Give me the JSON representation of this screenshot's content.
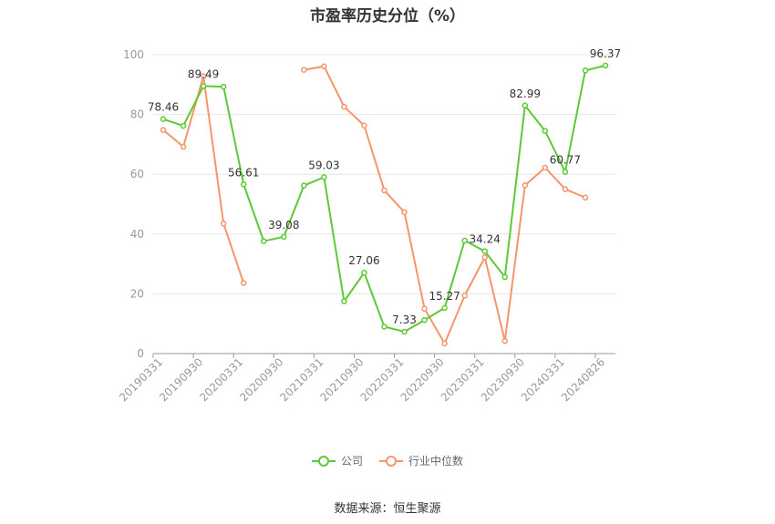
{
  "chart_data": {
    "type": "line",
    "title": "市盈率历史分位（%）",
    "xlabel": "",
    "ylabel": "",
    "ylim": [
      0,
      100
    ],
    "yticks": [
      0,
      20,
      40,
      60,
      80,
      100
    ],
    "grid": true,
    "legend_position": "bottom",
    "x_tick_labels": [
      "20190331",
      "20190930",
      "20200331",
      "20200930",
      "20210331",
      "20210930",
      "20220331",
      "20220930",
      "20230331",
      "20230930",
      "20240331",
      "20240826"
    ],
    "x": [
      "20190331",
      "20190630",
      "20190930",
      "20191231",
      "20200331",
      "20200630",
      "20200930",
      "20201231",
      "20210331",
      "20210630",
      "20210930",
      "20211231",
      "20220331",
      "20220630",
      "20220930",
      "20221231",
      "20230331",
      "20230630",
      "20230930",
      "20231231",
      "20240331",
      "20240630",
      "20240826"
    ],
    "series": [
      {
        "name": "公司",
        "color": "#5cc936",
        "values": [
          78.46,
          76.2,
          89.49,
          89.3,
          56.61,
          37.6,
          39.08,
          56.2,
          59.03,
          17.5,
          27.06,
          9.0,
          7.33,
          11.2,
          15.27,
          37.8,
          34.24,
          25.6,
          82.99,
          74.5,
          60.77,
          94.7,
          96.37
        ]
      },
      {
        "name": "行业中位数",
        "color": "#f4956a",
        "values": [
          74.8,
          69.2,
          92.8,
          43.5,
          23.6,
          null,
          null,
          94.9,
          96.1,
          82.6,
          76.3,
          54.6,
          47.3,
          15.0,
          3.4,
          19.4,
          32.2,
          4.2,
          56.3,
          62.2,
          55.0,
          52.2,
          null
        ]
      }
    ],
    "data_labels": [
      {
        "series": 0,
        "index": 0,
        "text": "78.46"
      },
      {
        "series": 0,
        "index": 2,
        "text": "89.49"
      },
      {
        "series": 0,
        "index": 4,
        "text": "56.61"
      },
      {
        "series": 0,
        "index": 6,
        "text": "39.08"
      },
      {
        "series": 0,
        "index": 8,
        "text": "59.03"
      },
      {
        "series": 0,
        "index": 10,
        "text": "27.06"
      },
      {
        "series": 0,
        "index": 12,
        "text": "7.33"
      },
      {
        "series": 0,
        "index": 14,
        "text": "15.27"
      },
      {
        "series": 0,
        "index": 16,
        "text": "34.24"
      },
      {
        "series": 0,
        "index": 18,
        "text": "82.99"
      },
      {
        "series": 0,
        "index": 20,
        "text": "60.77"
      },
      {
        "series": 0,
        "index": 22,
        "text": "96.37"
      }
    ]
  },
  "legend": [
    {
      "label": "公司",
      "color": "#5cc936"
    },
    {
      "label": "行业中位数",
      "color": "#f4956a"
    }
  ],
  "source_text": "数据来源：恒生聚源"
}
